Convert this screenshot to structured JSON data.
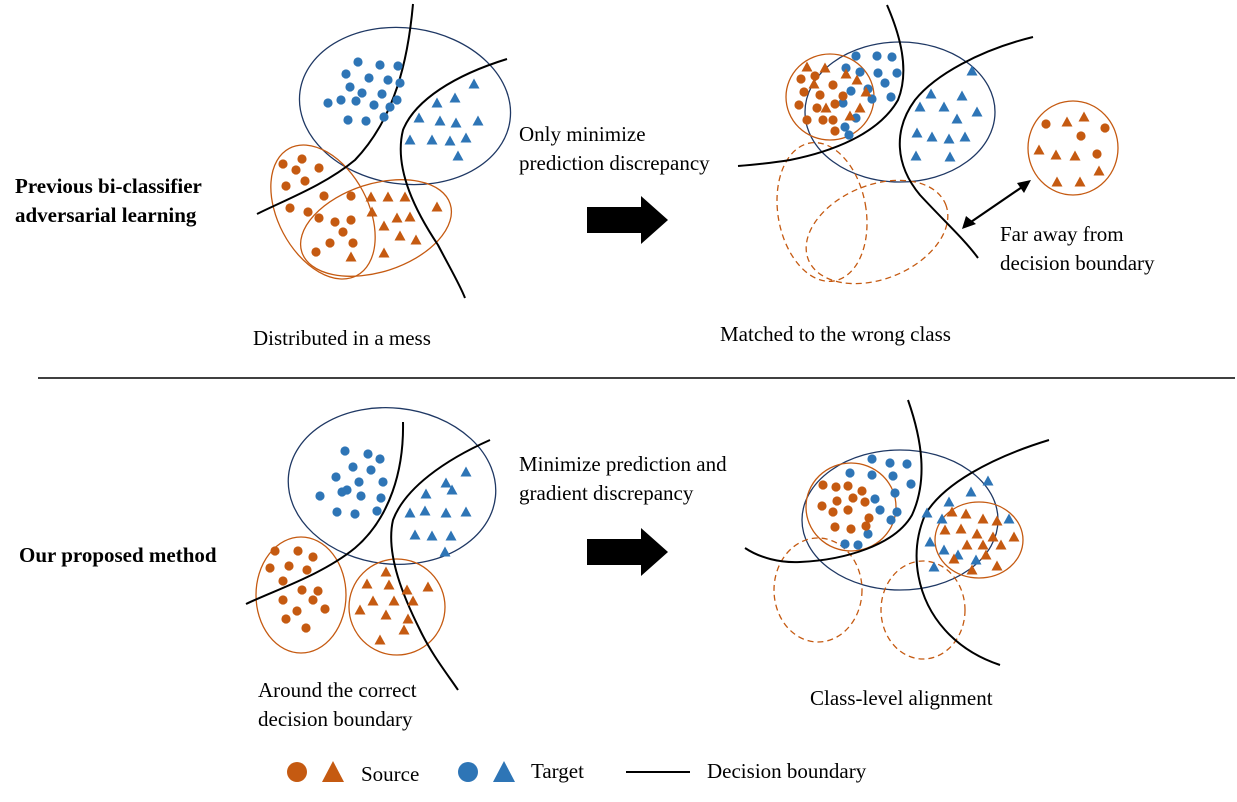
{
  "colors": {
    "source": "#c55a11",
    "target": "#2e75b6",
    "target_ellipse": "#1f3864",
    "boundary": "#000000"
  },
  "rows": {
    "previous": {
      "label_line1": "Previous bi-classifier",
      "label_line2": "adversarial learning",
      "caption_left": "Distributed in a mess",
      "arrow_line1": "Only minimize",
      "arrow_line2": "prediction discrepancy",
      "caption_right": "Matched to the wrong class",
      "far_line1": "Far away from",
      "far_line2": "decision boundary"
    },
    "proposed": {
      "label": "Our proposed method",
      "caption_left_line1": "Around the correct",
      "caption_left_line2": "decision boundary",
      "arrow_line1": "Minimize prediction and",
      "arrow_line2": "gradient discrepancy",
      "caption_right": "Class-level alignment"
    }
  },
  "legend": {
    "source": "Source",
    "target": "Target",
    "boundary": "Decision boundary"
  }
}
